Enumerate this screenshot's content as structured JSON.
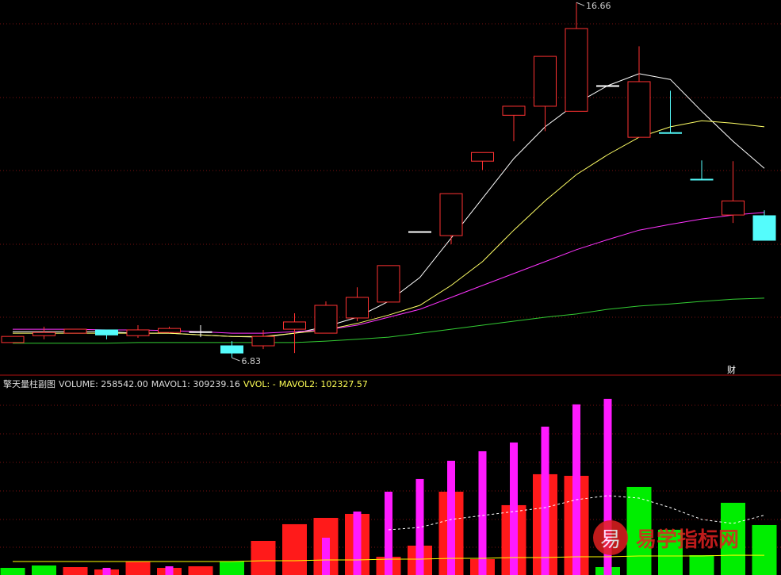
{
  "chart_data": [
    {
      "type": "candlestick",
      "open": [
        7.25,
        7.44,
        7.51,
        7.6,
        7.44,
        7.53,
        7.55,
        7.16,
        7.16,
        7.62,
        7.51,
        7.93,
        8.37,
        10.32,
        10.21,
        12.27,
        13.54,
        13.79,
        13.65,
        14.36,
        12.93,
        13.06,
        11.77,
        10.78,
        10.76
      ],
      "high": [
        7.42,
        7.69,
        7.62,
        7.6,
        7.73,
        7.69,
        7.73,
        7.29,
        7.6,
        8.06,
        8.39,
        8.78,
        9.38,
        10.32,
        11.37,
        12.51,
        13.79,
        15.17,
        16.66,
        14.36,
        15.45,
        14.22,
        12.29,
        12.27,
        10.91
      ],
      "low": [
        7.25,
        7.34,
        7.51,
        7.34,
        7.38,
        7.51,
        7.4,
        6.83,
        7.07,
        6.96,
        7.51,
        7.84,
        8.37,
        10.32,
        9.97,
        12.03,
        12.82,
        13.1,
        13.65,
        14.36,
        12.93,
        13.04,
        11.75,
        10.56,
        10.08
      ],
      "close": [
        7.42,
        7.53,
        7.62,
        7.46,
        7.6,
        7.64,
        7.55,
        6.96,
        7.42,
        7.82,
        8.28,
        8.5,
        9.38,
        10.32,
        11.37,
        12.51,
        13.79,
        15.17,
        15.94,
        14.36,
        14.47,
        13.04,
        11.75,
        11.17,
        10.08
      ],
      "up_color": "#ff3232",
      "down_color": "#54fcfc",
      "flat_color": "#ffffff",
      "ylim": [
        6.37,
        16.73
      ],
      "max_label": "16.66",
      "min_label": "6.83",
      "marker_text": "财",
      "series": [
        {
          "color": "#ffffff",
          "values": [
            7.55,
            7.55,
            7.55,
            7.55,
            7.51,
            7.51,
            7.46,
            7.42,
            7.4,
            7.51,
            7.69,
            7.95,
            8.39,
            9.05,
            10.14,
            11.24,
            12.34,
            13.22,
            13.87,
            14.36,
            14.69,
            14.53,
            13.65,
            12.82,
            12.07
          ]
        },
        {
          "color": "#ffff66",
          "values": [
            7.51,
            7.51,
            7.51,
            7.51,
            7.51,
            7.51,
            7.46,
            7.42,
            7.42,
            7.51,
            7.6,
            7.78,
            8.01,
            8.28,
            8.83,
            9.49,
            10.36,
            11.17,
            11.9,
            12.45,
            12.93,
            13.22,
            13.39,
            13.32,
            13.22
          ]
        },
        {
          "color": "#ff33ff",
          "values": [
            7.62,
            7.62,
            7.62,
            7.6,
            7.6,
            7.58,
            7.55,
            7.51,
            7.51,
            7.55,
            7.6,
            7.73,
            7.95,
            8.17,
            8.5,
            8.83,
            9.16,
            9.49,
            9.82,
            10.1,
            10.36,
            10.52,
            10.67,
            10.78,
            10.85
          ]
        },
        {
          "color": "#33cc33",
          "values": [
            7.23,
            7.23,
            7.23,
            7.23,
            7.25,
            7.25,
            7.25,
            7.25,
            7.25,
            7.25,
            7.29,
            7.34,
            7.4,
            7.51,
            7.62,
            7.73,
            7.84,
            7.95,
            8.04,
            8.17,
            8.26,
            8.32,
            8.39,
            8.45,
            8.48
          ]
        }
      ]
    },
    {
      "type": "bar",
      "title": "擎天量柱副图",
      "readouts": [
        {
          "text": "VOLUME: 258542.00",
          "color": "#dddddd"
        },
        {
          "text": "MAVOL1: 309239.16",
          "color": "#dddddd"
        },
        {
          "text": "VVOL: -",
          "color": "#ffff55"
        },
        {
          "text": "MAVOL2: 102327.57",
          "color": "#ffff55"
        }
      ],
      "ylim": [
        0,
        964000
      ],
      "series": [
        {
          "type": "bar",
          "values": [
            36900,
            49200,
            41000,
            28700,
            69800,
            36900,
            45100,
            69800,
            176500,
            262700,
            295500,
            316000,
            94400,
            151800,
            430900,
            82100,
            361200,
            521200,
            513000,
            41000,
            455500,
            233900,
            102600,
            373500,
            258542
          ],
          "colors": [
            "#00ee00",
            "#00ee00",
            "#ff1a1a",
            "#ff1a1a",
            "#ff1a1a",
            "#ff1a1a",
            "#ff1a1a",
            "#00ee00",
            "#ff1a1a",
            "#ff1a1a",
            "#ff1a1a",
            "#ff1a1a",
            "#ff1a1a",
            "#ff1a1a",
            "#ff1a1a",
            "#ff1a1a",
            "#ff1a1a",
            "#ff1a1a",
            "#ff1a1a",
            "#00ee00",
            "#00ee00",
            "#00ee00",
            "#00ee00",
            "#00ee00",
            "#00ee00"
          ]
        },
        {
          "type": "bar",
          "color": "#ff1aff",
          "values": [
            null,
            null,
            null,
            36900,
            null,
            45100,
            null,
            null,
            null,
            null,
            192900,
            328300,
            430900,
            496600,
            591000,
            640200,
            685400,
            767400,
            882400,
            911100,
            null,
            null,
            null,
            null,
            null
          ]
        },
        {
          "type": "line",
          "color": "#ffffff",
          "dashed": true,
          "values": [
            null,
            null,
            null,
            null,
            null,
            null,
            null,
            null,
            null,
            null,
            null,
            null,
            233900,
            246200,
            287300,
            307800,
            328300,
            348800,
            389900,
            410400,
            398100,
            348800,
            287300,
            266800,
            309239.16
          ]
        },
        {
          "type": "line",
          "color": "#ffff00",
          "values": [
            69800,
            69800,
            69800,
            69800,
            69800,
            69800,
            69800,
            69800,
            73900,
            73900,
            78000,
            78000,
            82100,
            82100,
            86200,
            86200,
            90300,
            90300,
            94400,
            94400,
            98500,
            98500,
            98500,
            102600,
            102327.57
          ]
        }
      ]
    }
  ],
  "watermark": {
    "logo": "易",
    "text": "易学指标网"
  }
}
